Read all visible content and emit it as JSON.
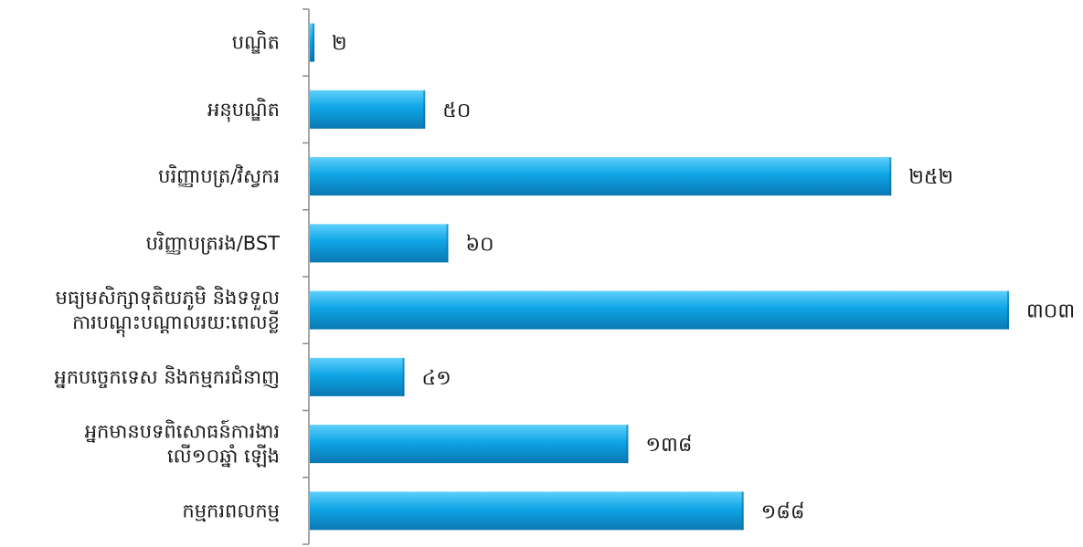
{
  "chart_data": {
    "type": "bar",
    "orientation": "horizontal",
    "title": "",
    "xlabel": "",
    "ylabel": "",
    "xlim": [
      0,
      303
    ],
    "grid": false,
    "legend": "none",
    "bar_color": "#0ea5e6",
    "categories": [
      [
        "បណ្ឌិត"
      ],
      [
        "អនុបណ្ឌិត"
      ],
      [
        "បរិញ្ញាបត្រ/វិស្វករ"
      ],
      [
        "បរិញ្ញាបត្ររង/BST"
      ],
      [
        "មធ្យមសិក្សាទុតិយភូមិ និងទទួល",
        "ការបណ្តុះបណ្តាលរយៈពេលខ្លី"
      ],
      [
        "អ្នកបច្ចេកទេស និងកម្មករជំនាញ"
      ],
      [
        "អ្នកមានបទពិសោធន៍ការងារ",
        "លើ១០ឆ្នាំ ឡើង"
      ],
      [
        "កម្មករពលកម្ម"
      ]
    ],
    "values": [
      2,
      50,
      252,
      60,
      303,
      41,
      138,
      188
    ],
    "value_labels": [
      "២",
      "៥០",
      "២៥២",
      "៦០",
      "៣០៣",
      "៤១",
      "១៣៨",
      "១៨៨"
    ]
  }
}
